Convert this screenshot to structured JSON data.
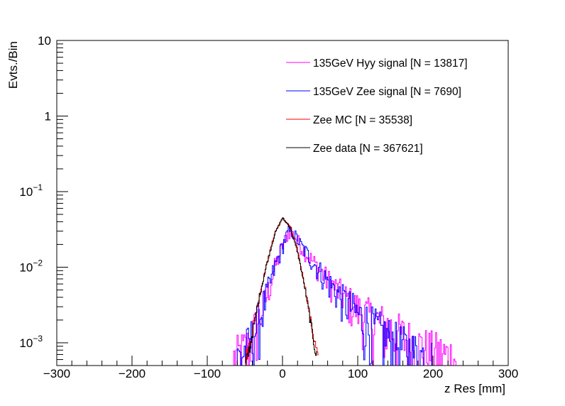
{
  "chart_data": {
    "type": "line",
    "title": "",
    "xlabel": "z Res [mm]",
    "ylabel": "Evts./Bin",
    "xlim": [
      -300,
      300
    ],
    "ylim": [
      0.0005,
      10
    ],
    "yscale": "log",
    "grid": false,
    "legend_position": "top-right",
    "x_ticks": [
      -300,
      -200,
      -100,
      0,
      100,
      200,
      300
    ],
    "x_tick_labels": [
      "−300",
      "−200",
      "−100",
      "0",
      "100",
      "200",
      "300"
    ],
    "y_ticks": [
      {
        "value": 10,
        "base": "10",
        "exp": ""
      },
      {
        "value": 1,
        "base": "1",
        "exp": ""
      },
      {
        "value": 0.1,
        "base": "10",
        "exp": "−1"
      },
      {
        "value": 0.01,
        "base": "10",
        "exp": "−2"
      },
      {
        "value": 0.001,
        "base": "10",
        "exp": "−3"
      }
    ],
    "series": [
      {
        "name": "135GeV Hyy signal",
        "legend": "135GeV Hyy signal [N = 13817]",
        "color": "#ff00ff",
        "shape": "asymmetric",
        "x": [
          -65,
          -45,
          -30,
          -20,
          -10,
          0,
          8,
          15,
          25,
          40,
          60,
          80,
          100,
          120,
          150,
          180,
          210,
          232
        ],
        "values": [
          0.0006,
          0.0009,
          0.0022,
          0.0045,
          0.01,
          0.019,
          0.029,
          0.027,
          0.019,
          0.012,
          0.0068,
          0.0043,
          0.0028,
          0.0021,
          0.0014,
          0.0009,
          0.0007,
          0.0006
        ]
      },
      {
        "name": "135GeV Zee signal",
        "legend": "135GeV Zee signal [N = 7690]",
        "color": "#0000ff",
        "shape": "asymmetric",
        "x": [
          -60,
          -45,
          -30,
          -20,
          -10,
          0,
          8,
          15,
          25,
          40,
          60,
          80,
          100,
          120,
          150,
          180,
          200
        ],
        "values": [
          0.0006,
          0.0009,
          0.0022,
          0.0045,
          0.01,
          0.019,
          0.03,
          0.028,
          0.019,
          0.012,
          0.0065,
          0.0038,
          0.0024,
          0.0016,
          0.001,
          0.0007,
          0.0006
        ]
      },
      {
        "name": "Zee MC",
        "legend": "Zee MC [N = 35538]",
        "color": "#ff0000",
        "shape": "gaussian",
        "x": [
          -50,
          -40,
          -30,
          -20,
          -10,
          0,
          10,
          20,
          30,
          40,
          48
        ],
        "values": [
          0.00055,
          0.0014,
          0.0045,
          0.012,
          0.029,
          0.044,
          0.035,
          0.017,
          0.0055,
          0.0014,
          0.0006
        ]
      },
      {
        "name": "Zee data",
        "legend": "Zee data [N = 367621]",
        "color": "#000000",
        "shape": "gaussian",
        "x": [
          -48,
          -40,
          -30,
          -20,
          -10,
          0,
          10,
          20,
          30,
          40,
          46
        ],
        "values": [
          0.00055,
          0.0013,
          0.0044,
          0.012,
          0.028,
          0.045,
          0.034,
          0.016,
          0.0052,
          0.0013,
          0.0006
        ]
      }
    ]
  }
}
